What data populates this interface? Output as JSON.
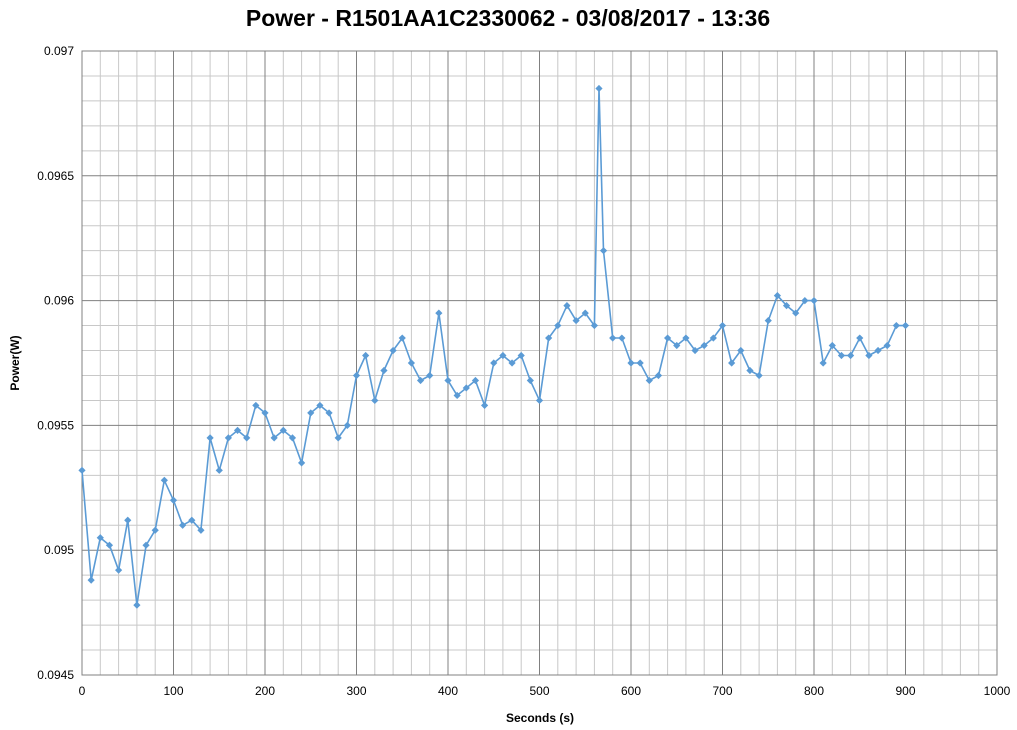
{
  "chart_data": {
    "type": "line",
    "title": "Power - R1501AA1C2330062 - 03/08/2017 - 13:36",
    "xlabel": "Seconds (s)",
    "ylabel": "Power(W)",
    "xlim": [
      0,
      1000
    ],
    "ylim": [
      0.0945,
      0.097
    ],
    "x_ticks": [
      "0",
      "100",
      "200",
      "300",
      "400",
      "500",
      "600",
      "700",
      "800",
      "900",
      "1000"
    ],
    "y_ticks": [
      "0.0945",
      "0.095",
      "0.0955",
      "0.096",
      "0.0965",
      "0.097"
    ],
    "x_tick_values": [
      0,
      100,
      200,
      300,
      400,
      500,
      600,
      700,
      800,
      900,
      1000
    ],
    "y_tick_values": [
      0.0945,
      0.095,
      0.0955,
      0.096,
      0.0965,
      0.097
    ],
    "grid": true,
    "legend": "none",
    "marker": "diamond",
    "color": "#5b9bd5",
    "series": [
      {
        "x": [
          0,
          10,
          20,
          30,
          40,
          50,
          60,
          70,
          80,
          90,
          100,
          110,
          120,
          130,
          140,
          150,
          160,
          170,
          180,
          190,
          200,
          210,
          220,
          230,
          240,
          250,
          260,
          270,
          280,
          290,
          300,
          310,
          320,
          330,
          340,
          350,
          360,
          370,
          380,
          390,
          400,
          410,
          420,
          430,
          440,
          450,
          460,
          470,
          480,
          490,
          500,
          510,
          520,
          530,
          540,
          550,
          560,
          565,
          570,
          580,
          590,
          600,
          610,
          620,
          630,
          640,
          650,
          660,
          670,
          680,
          690,
          700,
          710,
          720,
          730,
          740,
          750,
          760,
          770,
          780,
          790,
          800,
          810,
          820,
          830,
          840,
          850,
          860,
          870,
          880,
          890,
          900
        ],
        "y": [
          0.09532,
          0.09488,
          0.09505,
          0.09502,
          0.09492,
          0.09512,
          0.09478,
          0.09502,
          0.09508,
          0.09528,
          0.0952,
          0.0951,
          0.09512,
          0.09508,
          0.09545,
          0.09532,
          0.09545,
          0.09548,
          0.09545,
          0.09558,
          0.09555,
          0.09545,
          0.09548,
          0.09545,
          0.09535,
          0.09555,
          0.09558,
          0.09555,
          0.09545,
          0.0955,
          0.0957,
          0.09578,
          0.0956,
          0.09572,
          0.0958,
          0.09585,
          0.09575,
          0.09568,
          0.0957,
          0.09595,
          0.09568,
          0.09562,
          0.09565,
          0.09568,
          0.09558,
          0.09575,
          0.09578,
          0.09575,
          0.09578,
          0.09568,
          0.0956,
          0.09585,
          0.0959,
          0.09598,
          0.09592,
          0.09595,
          0.0959,
          0.09685,
          0.0962,
          0.09585,
          0.09585,
          0.09575,
          0.09575,
          0.09568,
          0.0957,
          0.09585,
          0.09582,
          0.09585,
          0.0958,
          0.09582,
          0.09585,
          0.0959,
          0.09575,
          0.0958,
          0.09572,
          0.0957,
          0.09592,
          0.09602,
          0.09598,
          0.09595,
          0.096,
          0.096,
          0.09575,
          0.09582,
          0.09578,
          0.09578,
          0.09585,
          0.09578,
          0.0958,
          0.09582,
          0.0959,
          0.0959
        ]
      }
    ]
  }
}
